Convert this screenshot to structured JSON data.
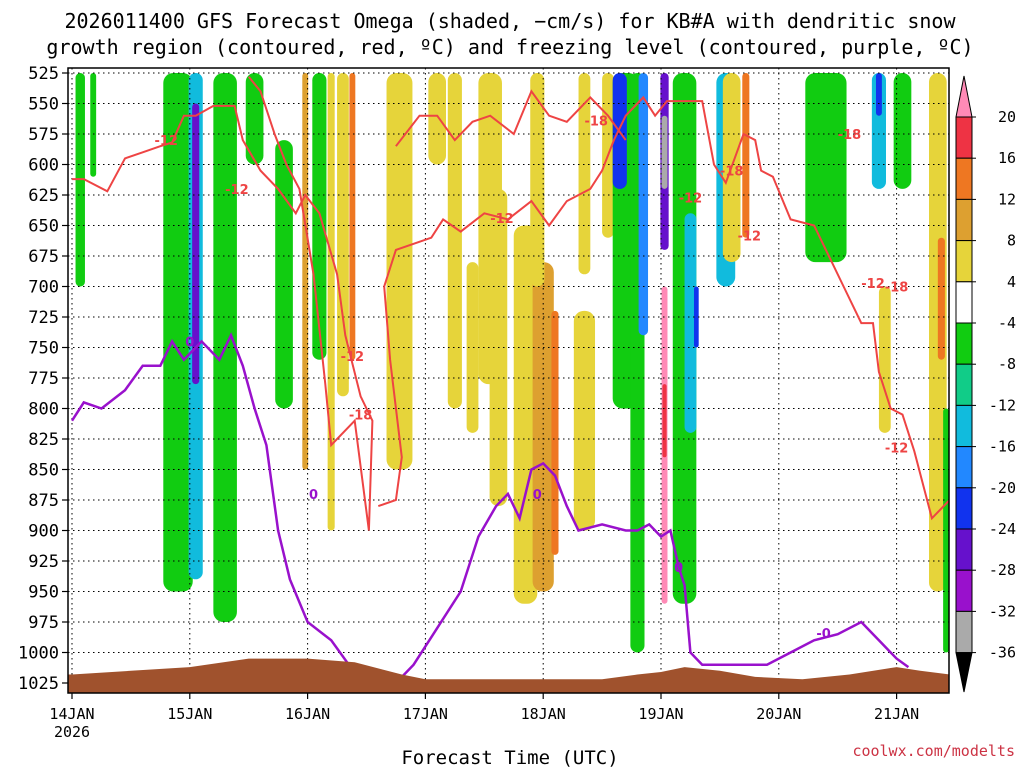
{
  "chart_data": {
    "type": "heatmap",
    "title_line1": "2026011400 GFS Forecast Omega (shaded, −cm/s) for KB#A with dendritic snow",
    "title_line2": "growth region (contoured, red, ºC) and freezing level (contoured, purple, ºC)",
    "xlabel": "Forecast Time (UTC)",
    "credit": "coolwx.com/modelts",
    "x_ticks": [
      {
        "day": 0,
        "label": "14JAN",
        "sub": "2026"
      },
      {
        "day": 1,
        "label": "15JAN"
      },
      {
        "day": 2,
        "label": "16JAN"
      },
      {
        "day": 3,
        "label": "17JAN"
      },
      {
        "day": 4,
        "label": "18JAN"
      },
      {
        "day": 5,
        "label": "19JAN"
      },
      {
        "day": 6,
        "label": "20JAN"
      },
      {
        "day": 7,
        "label": "21JAN"
      }
    ],
    "x_range": [
      0,
      7.45
    ],
    "y_ticks": [
      525,
      550,
      575,
      600,
      625,
      650,
      675,
      700,
      725,
      750,
      775,
      800,
      825,
      850,
      875,
      900,
      925,
      950,
      975,
      1000,
      1025
    ],
    "y_range": [
      525,
      1038
    ],
    "grid": true,
    "colorbar": {
      "labels": [
        "20",
        "16",
        "12",
        "8",
        "4",
        "-4",
        "-8",
        "-12",
        "-16",
        "-20",
        "-24",
        "-28",
        "-32",
        "-36"
      ],
      "colors": [
        "#ff8ab6",
        "#ee3344",
        "#ee7722",
        "#dda030",
        "#e6d43a",
        "#ffffff",
        "#11cc11",
        "#11cc88",
        "#11bbdd",
        "#2288ff",
        "#1133ee",
        "#6611cc",
        "#9911cc",
        "#aaaaaa",
        "#000000"
      ]
    },
    "omega_blobs": [
      {
        "x": 0.07,
        "p0": 525,
        "p1": 700,
        "w": 0.08,
        "color": "#11cc11"
      },
      {
        "x": 0.18,
        "p0": 525,
        "p1": 610,
        "w": 0.05,
        "color": "#11cc11"
      },
      {
        "x": 0.9,
        "p0": 525,
        "p1": 950,
        "w": 0.25,
        "color": "#11cc11"
      },
      {
        "x": 1.05,
        "p0": 525,
        "p1": 940,
        "w": 0.12,
        "color": "#11bbdd"
      },
      {
        "x": 1.05,
        "p0": 550,
        "p1": 780,
        "w": 0.06,
        "color": "#6611cc"
      },
      {
        "x": 1.3,
        "p0": 525,
        "p1": 975,
        "w": 0.2,
        "color": "#11cc11"
      },
      {
        "x": 1.55,
        "p0": 525,
        "p1": 600,
        "w": 0.15,
        "color": "#11cc11"
      },
      {
        "x": 1.8,
        "p0": 580,
        "p1": 800,
        "w": 0.15,
        "color": "#11cc11"
      },
      {
        "x": 1.98,
        "p0": 525,
        "p1": 850,
        "w": 0.05,
        "color": "#dda030"
      },
      {
        "x": 2.1,
        "p0": 525,
        "p1": 760,
        "w": 0.12,
        "color": "#11cc11"
      },
      {
        "x": 2.2,
        "p0": 525,
        "p1": 900,
        "w": 0.06,
        "color": "#e6d43a"
      },
      {
        "x": 2.3,
        "p0": 525,
        "p1": 790,
        "w": 0.1,
        "color": "#e6d43a"
      },
      {
        "x": 2.38,
        "p0": 525,
        "p1": 760,
        "w": 0.05,
        "color": "#ee7722"
      },
      {
        "x": 2.78,
        "p0": 525,
        "p1": 850,
        "w": 0.22,
        "color": "#e6d43a"
      },
      {
        "x": 3.25,
        "p0": 525,
        "p1": 800,
        "w": 0.12,
        "color": "#e6d43a"
      },
      {
        "x": 3.55,
        "p0": 525,
        "p1": 780,
        "w": 0.2,
        "color": "#e6d43a"
      },
      {
        "x": 3.85,
        "p0": 650,
        "p1": 960,
        "w": 0.2,
        "color": "#e6d43a"
      },
      {
        "x": 4.0,
        "p0": 680,
        "p1": 950,
        "w": 0.18,
        "color": "#dda030"
      },
      {
        "x": 4.1,
        "p0": 720,
        "p1": 920,
        "w": 0.06,
        "color": "#ee7722"
      },
      {
        "x": 4.35,
        "p0": 720,
        "p1": 900,
        "w": 0.18,
        "color": "#e6d43a"
      },
      {
        "x": 3.62,
        "p0": 620,
        "p1": 880,
        "w": 0.15,
        "color": "#e6d43a"
      },
      {
        "x": 3.95,
        "p0": 525,
        "p1": 700,
        "w": 0.12,
        "color": "#e6d43a"
      },
      {
        "x": 4.35,
        "p0": 525,
        "p1": 690,
        "w": 0.1,
        "color": "#e6d43a"
      },
      {
        "x": 4.55,
        "p0": 525,
        "p1": 660,
        "w": 0.1,
        "color": "#e6d43a"
      },
      {
        "x": 3.1,
        "p0": 525,
        "p1": 600,
        "w": 0.15,
        "color": "#e6d43a"
      },
      {
        "x": 3.4,
        "p0": 680,
        "p1": 820,
        "w": 0.1,
        "color": "#e6d43a"
      },
      {
        "x": 4.7,
        "p0": 525,
        "p1": 800,
        "w": 0.22,
        "color": "#11cc11"
      },
      {
        "x": 4.65,
        "p0": 525,
        "p1": 620,
        "w": 0.12,
        "color": "#1133ee"
      },
      {
        "x": 4.8,
        "p0": 525,
        "p1": 1000,
        "w": 0.12,
        "color": "#11cc11"
      },
      {
        "x": 4.85,
        "p0": 525,
        "p1": 740,
        "w": 0.08,
        "color": "#2288ff"
      },
      {
        "x": 5.03,
        "p0": 525,
        "p1": 670,
        "w": 0.07,
        "color": "#6611cc"
      },
      {
        "x": 5.03,
        "p0": 560,
        "p1": 620,
        "w": 0.05,
        "color": "#aaaaaa"
      },
      {
        "x": 5.03,
        "p0": 700,
        "p1": 960,
        "w": 0.05,
        "color": "#ff8ab6"
      },
      {
        "x": 5.03,
        "p0": 780,
        "p1": 840,
        "w": 0.035,
        "color": "#ee3344"
      },
      {
        "x": 5.2,
        "p0": 525,
        "p1": 960,
        "w": 0.2,
        "color": "#11cc11"
      },
      {
        "x": 5.25,
        "p0": 640,
        "p1": 820,
        "w": 0.1,
        "color": "#11bbdd"
      },
      {
        "x": 5.3,
        "p0": 700,
        "p1": 750,
        "w": 0.04,
        "color": "#1133ee"
      },
      {
        "x": 5.55,
        "p0": 525,
        "p1": 700,
        "w": 0.16,
        "color": "#11bbdd"
      },
      {
        "x": 5.6,
        "p0": 525,
        "p1": 680,
        "w": 0.15,
        "color": "#e6d43a"
      },
      {
        "x": 5.72,
        "p0": 525,
        "p1": 660,
        "w": 0.06,
        "color": "#ee7722"
      },
      {
        "x": 6.4,
        "p0": 525,
        "p1": 680,
        "w": 0.35,
        "color": "#11cc11"
      },
      {
        "x": 6.85,
        "p0": 525,
        "p1": 620,
        "w": 0.12,
        "color": "#11bbdd"
      },
      {
        "x": 6.85,
        "p0": 525,
        "p1": 560,
        "w": 0.05,
        "color": "#1133ee"
      },
      {
        "x": 7.05,
        "p0": 525,
        "p1": 620,
        "w": 0.15,
        "color": "#11cc11"
      },
      {
        "x": 6.9,
        "p0": 700,
        "p1": 820,
        "w": 0.1,
        "color": "#e6d43a"
      },
      {
        "x": 7.35,
        "p0": 525,
        "p1": 950,
        "w": 0.15,
        "color": "#e6d43a"
      },
      {
        "x": 7.38,
        "p0": 660,
        "p1": 760,
        "w": 0.06,
        "color": "#ee7722"
      },
      {
        "x": 7.42,
        "p0": 800,
        "p1": 1000,
        "w": 0.05,
        "color": "#11cc11"
      }
    ],
    "contour_red_left": [
      [
        0.0,
        612
      ],
      [
        0.1,
        612
      ],
      [
        0.3,
        622
      ],
      [
        0.45,
        595
      ],
      [
        0.6,
        590
      ],
      [
        0.75,
        585
      ],
      [
        0.85,
        582
      ],
      [
        0.95,
        560
      ],
      [
        1.05,
        560
      ],
      [
        1.2,
        552
      ],
      [
        1.38,
        552
      ],
      [
        1.45,
        580
      ],
      [
        1.6,
        605
      ],
      [
        1.75,
        620
      ],
      [
        1.9,
        640
      ],
      [
        1.98,
        625
      ],
      [
        2.1,
        640
      ],
      [
        2.25,
        690
      ],
      [
        2.32,
        740
      ],
      [
        2.45,
        790
      ],
      [
        2.55,
        810
      ],
      [
        2.52,
        900
      ],
      [
        2.4,
        810
      ],
      [
        2.2,
        830
      ],
      [
        2.15,
        780
      ],
      [
        2.05,
        690
      ],
      [
        1.93,
        620
      ],
      [
        1.82,
        600
      ],
      [
        1.72,
        575
      ],
      [
        1.6,
        540
      ],
      [
        1.5,
        528
      ]
    ],
    "contour_red_right": [
      [
        2.6,
        880
      ],
      [
        2.75,
        875
      ],
      [
        2.8,
        840
      ],
      [
        2.7,
        760
      ],
      [
        2.65,
        700
      ],
      [
        2.75,
        670
      ],
      [
        2.9,
        665
      ],
      [
        3.05,
        660
      ],
      [
        3.15,
        645
      ],
      [
        3.3,
        655
      ],
      [
        3.5,
        640
      ],
      [
        3.7,
        645
      ],
      [
        3.9,
        630
      ],
      [
        4.05,
        650
      ],
      [
        4.2,
        630
      ],
      [
        4.4,
        620
      ],
      [
        4.5,
        605
      ],
      [
        4.6,
        580
      ],
      [
        4.7,
        560
      ],
      [
        4.8,
        550
      ],
      [
        4.85,
        545
      ],
      [
        4.95,
        560
      ],
      [
        5.05,
        548
      ],
      [
        5.2,
        548
      ],
      [
        5.35,
        548
      ],
      [
        5.45,
        600
      ],
      [
        5.55,
        615
      ],
      [
        5.7,
        575
      ],
      [
        5.8,
        580
      ],
      [
        5.85,
        605
      ],
      [
        5.95,
        610
      ],
      [
        6.1,
        645
      ],
      [
        6.3,
        650
      ],
      [
        6.45,
        680
      ],
      [
        6.55,
        700
      ],
      [
        6.7,
        730
      ],
      [
        6.8,
        730
      ],
      [
        6.85,
        770
      ],
      [
        6.95,
        800
      ],
      [
        7.05,
        805
      ],
      [
        7.15,
        835
      ],
      [
        7.3,
        890
      ],
      [
        7.45,
        875
      ]
    ],
    "contour_red_top": [
      [
        2.75,
        585
      ],
      [
        2.95,
        560
      ],
      [
        3.1,
        560
      ],
      [
        3.25,
        580
      ],
      [
        3.4,
        565
      ],
      [
        3.55,
        560
      ],
      [
        3.75,
        575
      ],
      [
        3.9,
        540
      ],
      [
        4.05,
        560
      ],
      [
        4.2,
        565
      ],
      [
        4.4,
        545
      ],
      [
        4.55,
        560
      ],
      [
        4.7,
        580
      ]
    ],
    "contour_purple": [
      [
        0.0,
        810
      ],
      [
        0.1,
        795
      ],
      [
        0.25,
        800
      ],
      [
        0.45,
        785
      ],
      [
        0.6,
        765
      ],
      [
        0.75,
        765
      ],
      [
        0.85,
        745
      ],
      [
        0.95,
        760
      ],
      [
        1.1,
        745
      ],
      [
        1.25,
        760
      ],
      [
        1.35,
        740
      ],
      [
        1.45,
        765
      ],
      [
        1.55,
        800
      ],
      [
        1.65,
        830
      ],
      [
        1.75,
        900
      ],
      [
        1.85,
        940
      ],
      [
        2.0,
        975
      ],
      [
        2.2,
        990
      ],
      [
        2.35,
        1010
      ],
      [
        2.45,
        1038
      ],
      [
        2.7,
        1030
      ],
      [
        2.9,
        1010
      ],
      [
        3.1,
        980
      ],
      [
        3.3,
        950
      ],
      [
        3.45,
        905
      ],
      [
        3.6,
        880
      ],
      [
        3.7,
        870
      ],
      [
        3.8,
        890
      ],
      [
        3.9,
        850
      ],
      [
        4.0,
        845
      ],
      [
        4.1,
        855
      ],
      [
        4.2,
        880
      ],
      [
        4.3,
        900
      ],
      [
        4.5,
        895
      ],
      [
        4.7,
        900
      ],
      [
        4.8,
        900
      ],
      [
        4.9,
        895
      ],
      [
        5.0,
        905
      ],
      [
        5.08,
        900
      ],
      [
        5.15,
        930
      ],
      [
        5.2,
        945
      ],
      [
        5.25,
        1000
      ],
      [
        5.35,
        1010
      ],
      [
        5.6,
        1010
      ],
      [
        5.9,
        1010
      ],
      [
        6.1,
        1000
      ],
      [
        6.3,
        990
      ],
      [
        6.5,
        985
      ],
      [
        6.7,
        975
      ],
      [
        6.85,
        990
      ],
      [
        7.0,
        1005
      ],
      [
        7.1,
        1012
      ]
    ],
    "terrain": [
      [
        0.0,
        1018
      ],
      [
        0.5,
        1015
      ],
      [
        1.0,
        1012
      ],
      [
        1.5,
        1005
      ],
      [
        2.0,
        1005
      ],
      [
        2.4,
        1008
      ],
      [
        2.8,
        1018
      ],
      [
        3.0,
        1022
      ],
      [
        3.5,
        1022
      ],
      [
        4.0,
        1022
      ],
      [
        4.5,
        1022
      ],
      [
        4.8,
        1018
      ],
      [
        5.0,
        1016
      ],
      [
        5.2,
        1012
      ],
      [
        5.5,
        1015
      ],
      [
        5.8,
        1020
      ],
      [
        6.2,
        1022
      ],
      [
        6.6,
        1018
      ],
      [
        7.0,
        1012
      ],
      [
        7.2,
        1015
      ],
      [
        7.45,
        1018
      ]
    ],
    "contour_labels": [
      {
        "x": 0.8,
        "p": 580,
        "text": "-12",
        "color": "#ee4444"
      },
      {
        "x": 1.4,
        "p": 620,
        "text": "-12",
        "color": "#ee4444"
      },
      {
        "x": 2.38,
        "p": 757,
        "text": "-12",
        "color": "#ee4444"
      },
      {
        "x": 2.45,
        "p": 805,
        "text": "-18",
        "color": "#ee4444"
      },
      {
        "x": 3.65,
        "p": 644,
        "text": "-12",
        "color": "#ee4444"
      },
      {
        "x": 4.45,
        "p": 564,
        "text": "-18",
        "color": "#ee4444"
      },
      {
        "x": 5.25,
        "p": 627,
        "text": "-12",
        "color": "#ee4444"
      },
      {
        "x": 5.6,
        "p": 605,
        "text": "-18",
        "color": "#ee4444"
      },
      {
        "x": 5.75,
        "p": 658,
        "text": "-12",
        "color": "#ee4444"
      },
      {
        "x": 6.6,
        "p": 575,
        "text": "-18",
        "color": "#ee4444"
      },
      {
        "x": 6.8,
        "p": 697,
        "text": "-12",
        "color": "#ee4444"
      },
      {
        "x": 7.0,
        "p": 700,
        "text": "-18",
        "color": "#ee4444"
      },
      {
        "x": 7.0,
        "p": 832,
        "text": "-12",
        "color": "#ee4444"
      },
      {
        "x": 1.0,
        "p": 745,
        "text": "0",
        "color": "#9911cc"
      },
      {
        "x": 2.05,
        "p": 870,
        "text": "0",
        "color": "#9911cc"
      },
      {
        "x": 3.95,
        "p": 870,
        "text": "0",
        "color": "#9911cc"
      },
      {
        "x": 5.15,
        "p": 930,
        "text": "0",
        "color": "#9911cc"
      },
      {
        "x": 6.38,
        "p": 984,
        "text": "-0",
        "color": "#9911cc"
      }
    ]
  }
}
